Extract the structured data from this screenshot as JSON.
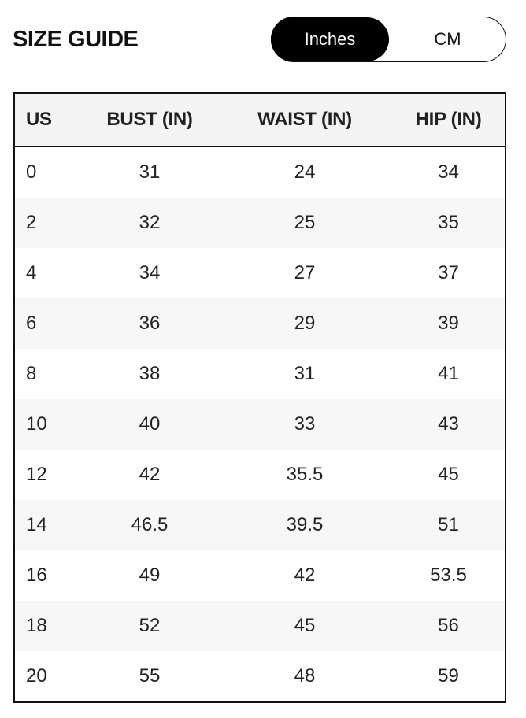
{
  "title": "SIZE GUIDE",
  "unit_toggle": {
    "options": [
      "Inches",
      "CM"
    ],
    "selected": "Inches"
  },
  "table": {
    "headers": [
      "US",
      "BUST (IN)",
      "WAIST (IN)",
      "HIP (IN)"
    ],
    "rows": [
      [
        "0",
        "31",
        "24",
        "34"
      ],
      [
        "2",
        "32",
        "25",
        "35"
      ],
      [
        "4",
        "34",
        "27",
        "37"
      ],
      [
        "6",
        "36",
        "29",
        "39"
      ],
      [
        "8",
        "38",
        "31",
        "41"
      ],
      [
        "10",
        "40",
        "33",
        "43"
      ],
      [
        "12",
        "42",
        "35.5",
        "45"
      ],
      [
        "14",
        "46.5",
        "39.5",
        "51"
      ],
      [
        "16",
        "49",
        "42",
        "53.5"
      ],
      [
        "18",
        "52",
        "45",
        "56"
      ],
      [
        "20",
        "55",
        "48",
        "59"
      ]
    ]
  }
}
